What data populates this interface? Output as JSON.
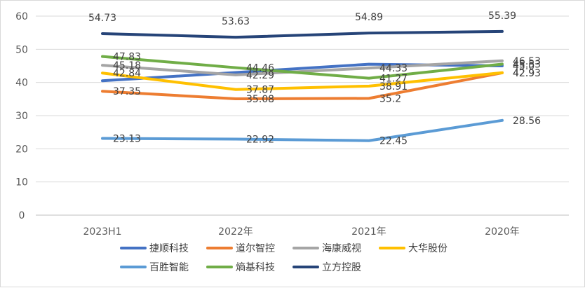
{
  "chart_data": {
    "type": "line",
    "categories": [
      "2023H1",
      "2022年",
      "2021年",
      "2020年"
    ],
    "ylim": [
      0,
      60
    ],
    "yticks": [
      0,
      10,
      20,
      30,
      40,
      50,
      60
    ],
    "grid": true,
    "legend_position": "bottom",
    "series": [
      {
        "name": "捷顺科技",
        "color": "#4472C4",
        "values": [
          40.5,
          43.0,
          45.5,
          45.0
        ]
      },
      {
        "name": "道尔智控",
        "color": "#ED7D31",
        "values": [
          37.35,
          35.08,
          35.2,
          42.9
        ]
      },
      {
        "name": "海康威视",
        "color": "#A5A5A5",
        "values": [
          45.18,
          42.29,
          44.33,
          46.53
        ]
      },
      {
        "name": "大华股份",
        "color": "#FFC000",
        "values": [
          42.84,
          37.87,
          38.91,
          42.93
        ]
      },
      {
        "name": "百胜智能",
        "color": "#5B9BD5",
        "values": [
          23.13,
          22.92,
          22.45,
          28.56
        ]
      },
      {
        "name": "熵基科技",
        "color": "#70AD47",
        "values": [
          47.83,
          44.46,
          41.27,
          45.53
        ]
      },
      {
        "name": "立方控股",
        "color": "#264478",
        "values": [
          54.73,
          53.63,
          54.89,
          55.39
        ]
      }
    ],
    "data_labels": [
      {
        "text": "54.73",
        "cat": 0,
        "y": 54.73,
        "pos": "above"
      },
      {
        "text": "53.63",
        "cat": 1,
        "y": 53.63,
        "pos": "above"
      },
      {
        "text": "54.89",
        "cat": 2,
        "y": 54.89,
        "pos": "above"
      },
      {
        "text": "55.39",
        "cat": 3,
        "y": 55.39,
        "pos": "above"
      },
      {
        "text": "47.83",
        "cat": 0,
        "y": 47.83,
        "pos": "right"
      },
      {
        "text": "45.18",
        "cat": 0,
        "y": 45.18,
        "pos": "right"
      },
      {
        "text": "42.84",
        "cat": 0,
        "y": 42.84,
        "pos": "right"
      },
      {
        "text": "37.35",
        "cat": 0,
        "y": 37.35,
        "pos": "right"
      },
      {
        "text": "23.13",
        "cat": 0,
        "y": 23.13,
        "pos": "right"
      },
      {
        "text": "44.46",
        "cat": 1,
        "y": 44.46,
        "pos": "right"
      },
      {
        "text": "42.29",
        "cat": 1,
        "y": 42.29,
        "pos": "right"
      },
      {
        "text": "37.87",
        "cat": 1,
        "y": 37.87,
        "pos": "right"
      },
      {
        "text": "35.08",
        "cat": 1,
        "y": 35.08,
        "pos": "right"
      },
      {
        "text": "22.92",
        "cat": 1,
        "y": 22.92,
        "pos": "right"
      },
      {
        "text": "44.33",
        "cat": 2,
        "y": 44.33,
        "pos": "right"
      },
      {
        "text": "41.27",
        "cat": 2,
        "y": 41.27,
        "pos": "right"
      },
      {
        "text": "38.91",
        "cat": 2,
        "y": 38.91,
        "pos": "right"
      },
      {
        "text": "35.2",
        "cat": 2,
        "y": 35.2,
        "pos": "right"
      },
      {
        "text": "22.45",
        "cat": 2,
        "y": 22.45,
        "pos": "right"
      },
      {
        "text": "46.53",
        "cat": 3,
        "y": 46.53,
        "pos": "right"
      },
      {
        "text": "45.53",
        "cat": 3,
        "y": 45.53,
        "pos": "right"
      },
      {
        "text": "45.0",
        "cat": 3,
        "y": 45.0,
        "pos": "right"
      },
      {
        "text": "42.93",
        "cat": 3,
        "y": 42.93,
        "pos": "right"
      },
      {
        "text": "42.9",
        "cat": 3,
        "y": 42.9,
        "pos": "right"
      },
      {
        "text": "28.56",
        "cat": 3,
        "y": 28.56,
        "pos": "right"
      }
    ]
  }
}
